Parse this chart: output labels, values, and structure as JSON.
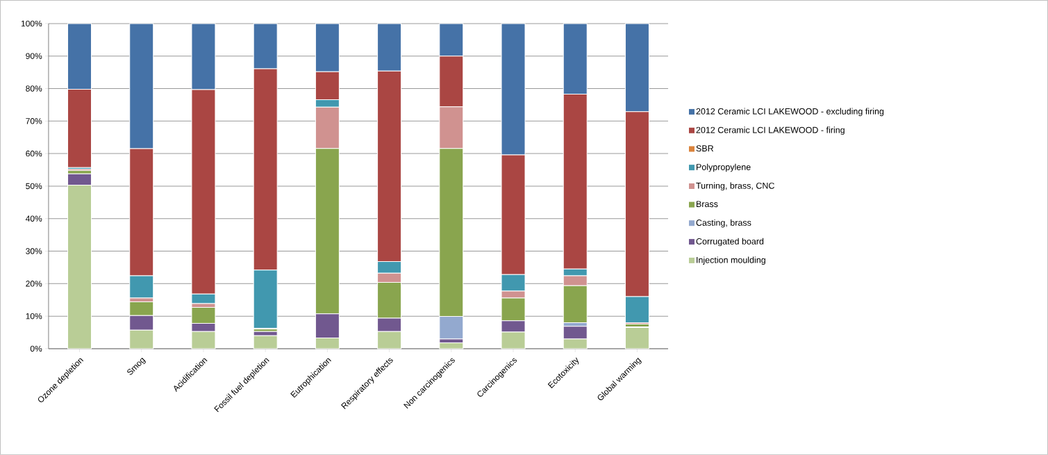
{
  "chart_data": {
    "type": "bar",
    "stacked": true,
    "categories": [
      "Ozone depletion",
      "Smog",
      "Acidification",
      "Fossil fuel depletion",
      "Eutrophication",
      "Respiratory effects",
      "Non carcinogenics",
      "Carcinogenics",
      "Ecotoxicity",
      "Global warming"
    ],
    "series": [
      {
        "name": "Injection moulding",
        "color": "#b9cd96",
        "values": [
          50.3,
          5.7,
          5.3,
          4.0,
          3.3,
          5.3,
          1.8,
          5.1,
          3.0,
          6.5
        ]
      },
      {
        "name": "Corrugated board",
        "color": "#71588f",
        "values": [
          3.5,
          4.5,
          2.5,
          1.3,
          7.4,
          4.1,
          1.2,
          3.5,
          3.9,
          0.2
        ]
      },
      {
        "name": "Casting, brass",
        "color": "#93a9cf",
        "values": [
          0,
          0,
          0,
          0,
          0,
          0,
          6.9,
          0,
          1.1,
          0
        ]
      },
      {
        "name": "Brass",
        "color": "#89a54e",
        "values": [
          1.0,
          4.2,
          4.9,
          0.7,
          50.9,
          11.0,
          51.7,
          7.0,
          11.4,
          0.9
        ]
      },
      {
        "name": "Turning, brass, CNC",
        "color": "#d09290",
        "values": [
          0.4,
          1.2,
          1.2,
          0.3,
          12.7,
          2.8,
          12.8,
          2.1,
          3.0,
          0.4
        ]
      },
      {
        "name": "Polypropylene",
        "color": "#4198af",
        "values": [
          0.5,
          6.8,
          2.9,
          17.9,
          2.3,
          3.6,
          0,
          5.1,
          2.1,
          8.0
        ]
      },
      {
        "name": "SBR",
        "color": "#db843d",
        "values": [
          0,
          0,
          0,
          0,
          0,
          0,
          0,
          0,
          0,
          0
        ]
      },
      {
        "name": "2012 Ceramic LCI LAKEWOOD - firing",
        "color": "#aa4643",
        "values": [
          24.1,
          39.1,
          62.9,
          61.9,
          8.6,
          58.6,
          15.6,
          36.8,
          53.8,
          56.9
        ]
      },
      {
        "name": "2012 Ceramic LCI LAKEWOOD - excluding firing",
        "color": "#4572a7",
        "values": [
          20.2,
          38.5,
          20.3,
          13.9,
          14.8,
          14.6,
          10.0,
          40.4,
          21.7,
          27.1
        ]
      }
    ],
    "ylim": [
      0,
      100
    ],
    "yticks": [
      {
        "value": 0,
        "label": "0%"
      },
      {
        "value": 10,
        "label": "10%"
      },
      {
        "value": 20,
        "label": "20%"
      },
      {
        "value": 30,
        "label": "30%"
      },
      {
        "value": 40,
        "label": "40%"
      },
      {
        "value": 50,
        "label": "50%"
      },
      {
        "value": 60,
        "label": "60%"
      },
      {
        "value": 70,
        "label": "70%"
      },
      {
        "value": 80,
        "label": "80%"
      },
      {
        "value": 90,
        "label": "90%"
      },
      {
        "value": 100,
        "label": "100%"
      }
    ],
    "grid": "y",
    "legend": "right"
  }
}
